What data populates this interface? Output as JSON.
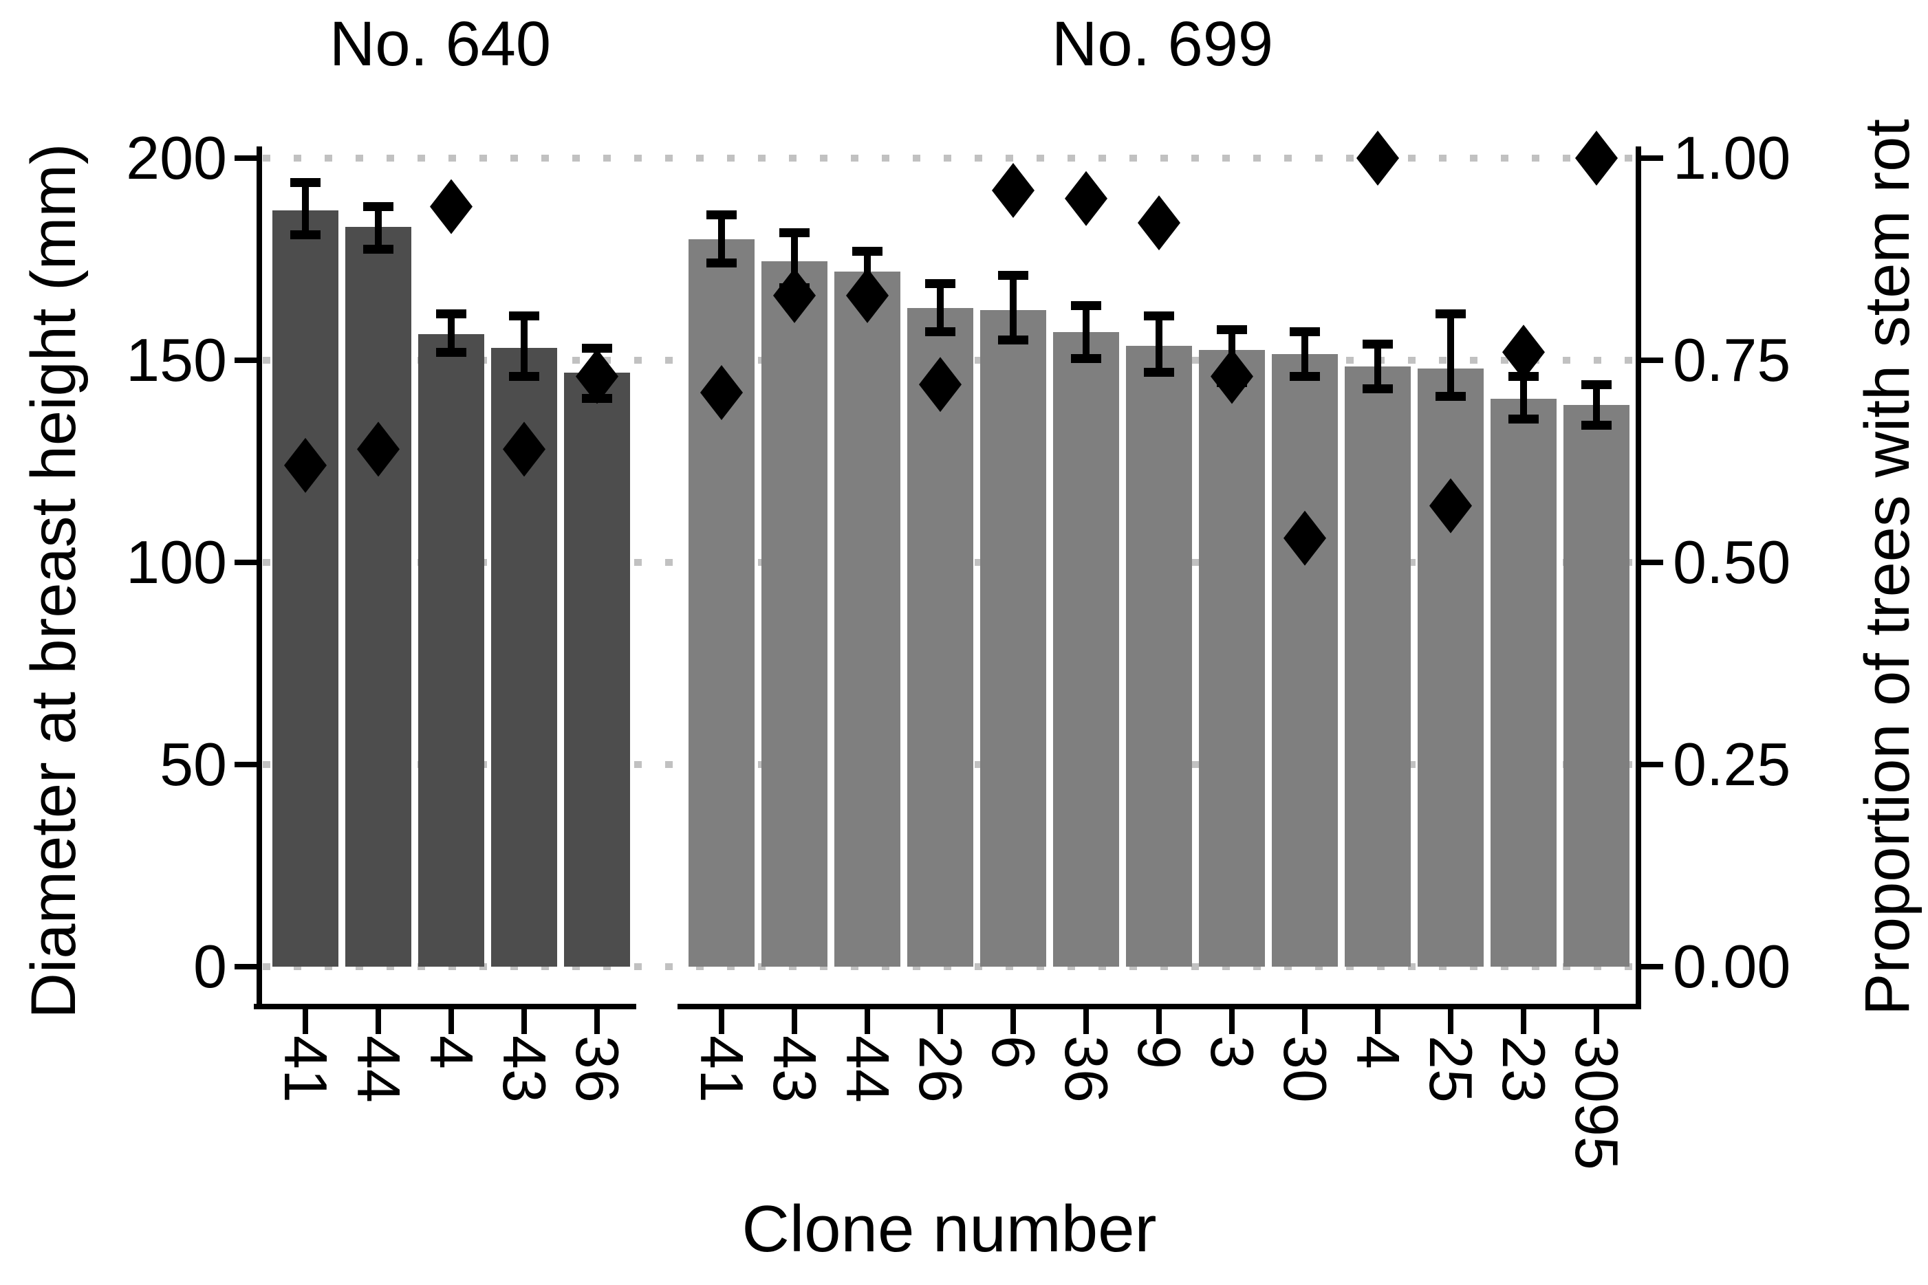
{
  "figure_title": "",
  "chart_data": {
    "type": "bar",
    "xlabel": "Clone number",
    "left_axis": {
      "label": "Diameter at breast height (mm)",
      "tick_values": [
        200,
        150,
        100,
        50,
        0
      ],
      "tick_labels": [
        "200",
        "150",
        "100",
        "50",
        "0"
      ],
      "lim": [
        0,
        200
      ]
    },
    "right_axis": {
      "label": "Proportion of trees with stem rot",
      "tick_values": [
        1.0,
        0.75,
        0.5,
        0.25,
        0.0
      ],
      "tick_labels": [
        "1.00",
        "0.75",
        "0.50",
        "0.25",
        "0.00"
      ],
      "lim": [
        0,
        1
      ]
    },
    "grid": {
      "style": "dotted",
      "color": "#c1c1c1",
      "horizontal_at_mm": [
        200,
        150,
        100,
        50,
        0
      ]
    },
    "marker": {
      "shape": "diamond",
      "color": "#000000",
      "meaning": "proportion of trees with stem rot"
    },
    "error_bars": {
      "meaning": "confidence interval of mean DBH",
      "color": "#000000"
    },
    "panels": [
      {
        "title": "No. 640",
        "bar_color": "#4d4d4d",
        "clones": [
          "41",
          "44",
          "4",
          "43",
          "36"
        ],
        "dbh_mean_mm": [
          187,
          183,
          156.5,
          153,
          147
        ],
        "dbh_ci_low_mm": [
          181,
          177.5,
          152,
          146,
          140.5
        ],
        "dbh_ci_high_mm": [
          194,
          188,
          161.5,
          161,
          153
        ],
        "stem_rot_proportion": [
          0.62,
          0.64,
          0.94,
          0.64,
          0.73
        ]
      },
      {
        "title": "No. 699",
        "bar_color": "#7f7f7f",
        "clones": [
          "41",
          "43",
          "44",
          "26",
          "6",
          "36",
          "9",
          "3",
          "30",
          "4",
          "25",
          "23",
          "3095"
        ],
        "dbh_mean_mm": [
          180,
          174.5,
          172,
          163,
          162.5,
          157,
          153.5,
          152.5,
          151.5,
          148.5,
          148,
          140.5,
          139
        ],
        "dbh_ci_low_mm": [
          174,
          168,
          166,
          157,
          155,
          150.5,
          147,
          144.5,
          146,
          143,
          141,
          135.5,
          134
        ],
        "dbh_ci_high_mm": [
          186,
          181.5,
          177,
          169,
          171,
          163.5,
          161,
          157.5,
          157,
          154,
          161.5,
          146,
          144
        ],
        "stem_rot_proportion": [
          0.71,
          0.83,
          0.83,
          0.72,
          0.96,
          0.95,
          0.92,
          0.73,
          0.53,
          1.0,
          0.57,
          0.76,
          1.0
        ]
      }
    ]
  }
}
